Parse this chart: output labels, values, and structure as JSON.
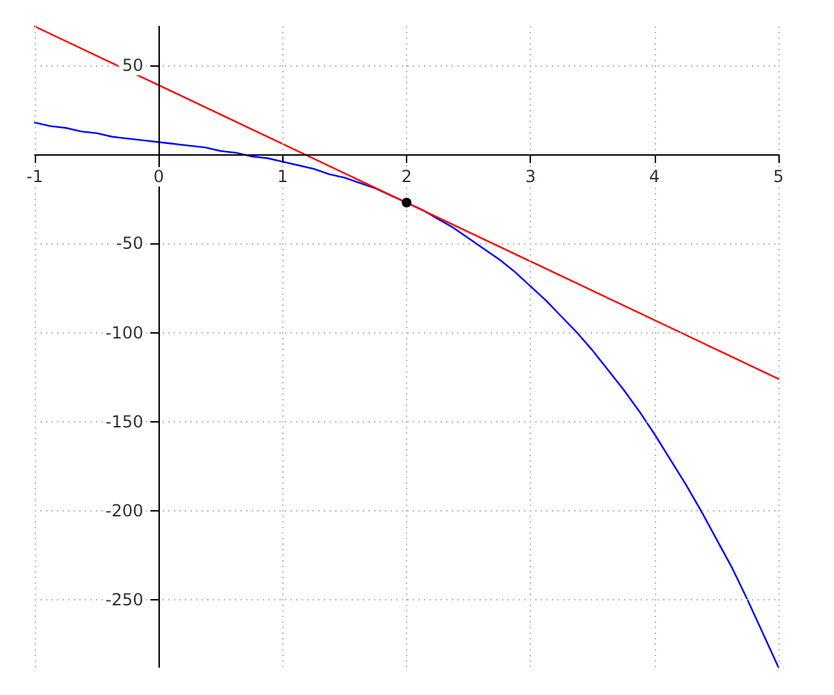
{
  "chart_data": {
    "type": "line",
    "x": [
      -1,
      -0.875,
      -0.75,
      -0.625,
      -0.5,
      -0.375,
      -0.25,
      -0.125,
      0,
      0.125,
      0.25,
      0.375,
      0.5,
      0.625,
      0.75,
      0.875,
      1,
      1.125,
      1.25,
      1.375,
      1.5,
      1.625,
      1.75,
      1.875,
      2,
      2.125,
      2.25,
      2.375,
      2.5,
      2.625,
      2.75,
      2.875,
      3,
      3.125,
      3.25,
      3.375,
      3.5,
      3.625,
      3.75,
      3.875,
      4,
      4.125,
      4.25,
      4.375,
      4.5,
      4.625,
      4.75,
      4.875,
      5
    ],
    "series": [
      {
        "color": "#0000ff",
        "values": [
          18,
          16,
          15,
          13,
          12,
          10,
          9,
          8,
          7,
          6,
          5,
          4,
          2,
          1,
          -1,
          -2,
          -4,
          -6,
          -8,
          -11,
          -13,
          -16,
          -19,
          -23,
          -27,
          -31,
          -36,
          -41,
          -47,
          -53,
          -59,
          -66,
          -74,
          -82,
          -91,
          -100,
          -110,
          -121,
          -132,
          -144,
          -157,
          -171,
          -185,
          -200,
          -216,
          -232,
          -250,
          -269,
          -288
        ]
      },
      {
        "color": "#ff0000",
        "x": [
          -1,
          5
        ],
        "values": [
          72,
          -126
        ]
      },
      {
        "type": "scatter",
        "color": "#000000",
        "marker": "circle",
        "x": [
          2
        ],
        "values": [
          -27
        ]
      }
    ],
    "xlim": [
      -1,
      5
    ],
    "xticks": [
      -1,
      0,
      1,
      2,
      3,
      4,
      5
    ],
    "ylim": [
      -288,
      72
    ],
    "yticks": [
      -250,
      -200,
      -150,
      -100,
      -50,
      50
    ],
    "grid": true,
    "marker": "none",
    "line_style": "solid"
  }
}
